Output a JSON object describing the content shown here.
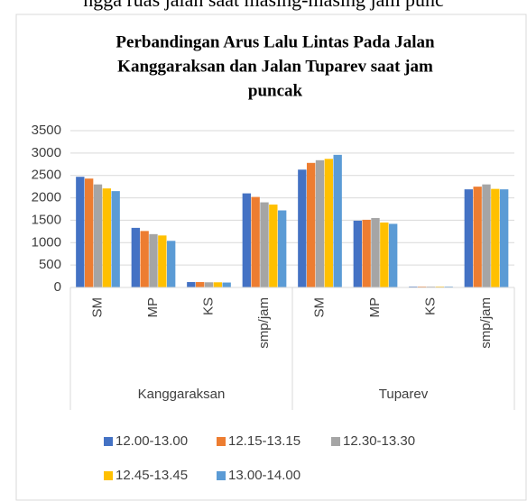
{
  "page_fragment": "ngga ruas jalan saat masing-masing jam punc",
  "chart_data": {
    "type": "bar",
    "title": [
      "Perbandingan Arus Lalu Lintas Pada Jalan",
      "Kanggaraksan dan Jalan Tuparev saat jam",
      "puncak"
    ],
    "groups": [
      {
        "name": "Kanggaraksan",
        "size": 4
      },
      {
        "name": "Tuparev",
        "size": 4
      }
    ],
    "categories": [
      "SM",
      "MP",
      "KS",
      "smp/jam",
      "SM",
      "MP",
      "KS",
      "smp/jam"
    ],
    "series": [
      {
        "name": "12.00-13.00",
        "color": "#4472c4",
        "values": [
          2470,
          1330,
          120,
          2100,
          2630,
          1490,
          20,
          2190
        ]
      },
      {
        "name": "12.15-13.15",
        "color": "#ed7d31",
        "values": [
          2430,
          1260,
          120,
          2020,
          2780,
          1510,
          20,
          2250
        ]
      },
      {
        "name": "12.30-13.30",
        "color": "#a5a5a5",
        "values": [
          2300,
          1190,
          115,
          1900,
          2840,
          1550,
          20,
          2300
        ]
      },
      {
        "name": "12.45-13.45",
        "color": "#ffc000",
        "values": [
          2210,
          1160,
          115,
          1850,
          2870,
          1450,
          20,
          2200
        ]
      },
      {
        "name": "13.00-14.00",
        "color": "#5b9bd5",
        "values": [
          2150,
          1040,
          110,
          1720,
          2960,
          1420,
          20,
          2190
        ]
      }
    ],
    "ylim": [
      0,
      3500
    ],
    "yticks": [
      0,
      500,
      1000,
      1500,
      2000,
      2500,
      3000,
      3500
    ],
    "grid": true,
    "legend": "bottom"
  }
}
